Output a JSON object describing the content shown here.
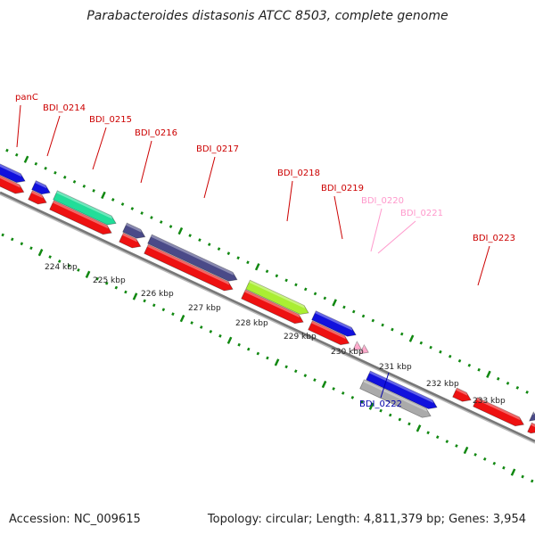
{
  "title": "Parabacteroides distasonis ATCC 8503, complete genome",
  "footer": {
    "accession": "Accession: NC_009615",
    "stats": "Topology: circular; Length: 4,811,379 bp; Genes: 3,954"
  },
  "colors": {
    "cds_red": "#ee1111",
    "blue": "#1111dd",
    "teal": "#22dd99",
    "navy_purple": "#4a4a88",
    "lime": "#aaee33",
    "gray": "#aaaaaa",
    "pink": "#ffaacc",
    "label_red": "#cc0000",
    "label_pink": "#ff99cc",
    "label_blue": "#0000aa",
    "tick_green": "#118811"
  },
  "ruler": {
    "unit": "kbp",
    "labels": [
      "224 kbp",
      "225 kbp",
      "226 kbp",
      "227 kbp",
      "228 kbp",
      "229 kbp",
      "230 kbp",
      "231 kbp",
      "232 kbp",
      "233 kbp"
    ]
  },
  "genes": [
    {
      "name": "panC",
      "color_key": "label_red"
    },
    {
      "name": "BDI_0214",
      "color_key": "label_red"
    },
    {
      "name": "BDI_0215",
      "color_key": "label_red"
    },
    {
      "name": "BDI_0216",
      "color_key": "label_red"
    },
    {
      "name": "BDI_0217",
      "color_key": "label_red"
    },
    {
      "name": "BDI_0218",
      "color_key": "label_red"
    },
    {
      "name": "BDI_0219",
      "color_key": "label_red"
    },
    {
      "name": "BDI_0220",
      "color_key": "label_pink"
    },
    {
      "name": "BDI_0221",
      "color_key": "label_pink"
    },
    {
      "name": "BDI_0222",
      "color_key": "label_blue"
    },
    {
      "name": "BDI_0223",
      "color_key": "label_red"
    }
  ]
}
